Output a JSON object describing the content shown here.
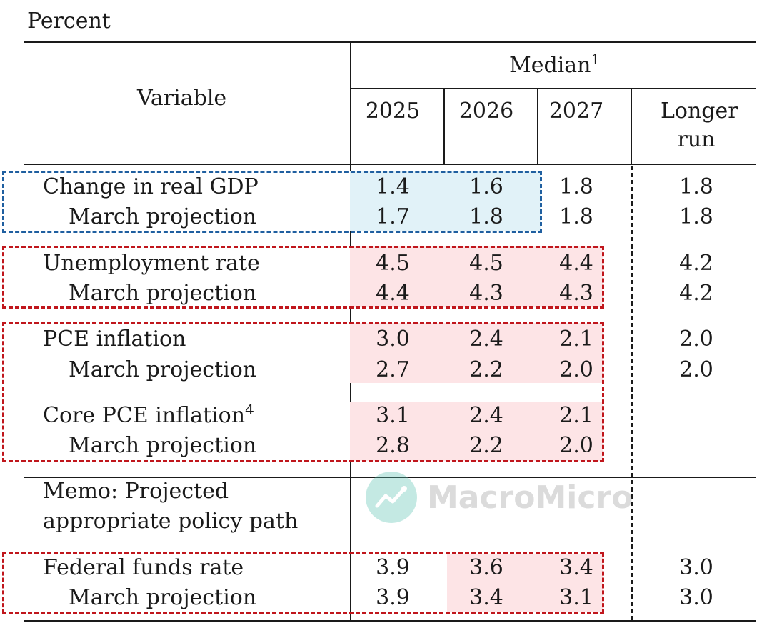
{
  "unit_label": "Percent",
  "header": {
    "variable": "Variable",
    "median": "Median",
    "median_note": "1",
    "years": [
      "2025",
      "2026",
      "2027"
    ],
    "longer_run_line1": "Longer",
    "longer_run_line2": "run"
  },
  "rows": {
    "gdp": {
      "label": "Change in real GDP",
      "values": [
        "1.4",
        "1.6",
        "1.8",
        "1.8"
      ]
    },
    "gdp_march": {
      "label": "March projection",
      "values": [
        "1.7",
        "1.8",
        "1.8",
        "1.8"
      ]
    },
    "unemp": {
      "label": "Unemployment rate",
      "values": [
        "4.5",
        "4.5",
        "4.4",
        "4.2"
      ]
    },
    "unemp_march": {
      "label": "March projection",
      "values": [
        "4.4",
        "4.3",
        "4.3",
        "4.2"
      ]
    },
    "pce": {
      "label": "PCE inflation",
      "values": [
        "3.0",
        "2.4",
        "2.1",
        "2.0"
      ]
    },
    "pce_march": {
      "label": "March projection",
      "values": [
        "2.7",
        "2.2",
        "2.0",
        "2.0"
      ]
    },
    "core": {
      "label": "Core PCE inflation",
      "note": "4",
      "values": [
        "3.1",
        "2.4",
        "2.1"
      ]
    },
    "core_march": {
      "label": "March projection",
      "values": [
        "2.8",
        "2.2",
        "2.0"
      ]
    },
    "memo_line1": "Memo: Projected",
    "memo_line2": "appropriate policy path",
    "ffr": {
      "label": "Federal funds rate",
      "values": [
        "3.9",
        "3.6",
        "3.4",
        "3.0"
      ]
    },
    "ffr_march": {
      "label": "March projection",
      "values": [
        "3.9",
        "3.4",
        "3.1",
        "3.0"
      ]
    }
  },
  "watermark": {
    "text": "MacroMicro",
    "logo_color": "#58c3b0"
  },
  "colors": {
    "blue_box": "#1f5fa0",
    "red_box": "#c0161c",
    "blue_fill": "#e1f2f8",
    "red_fill": "#fde4e6"
  }
}
